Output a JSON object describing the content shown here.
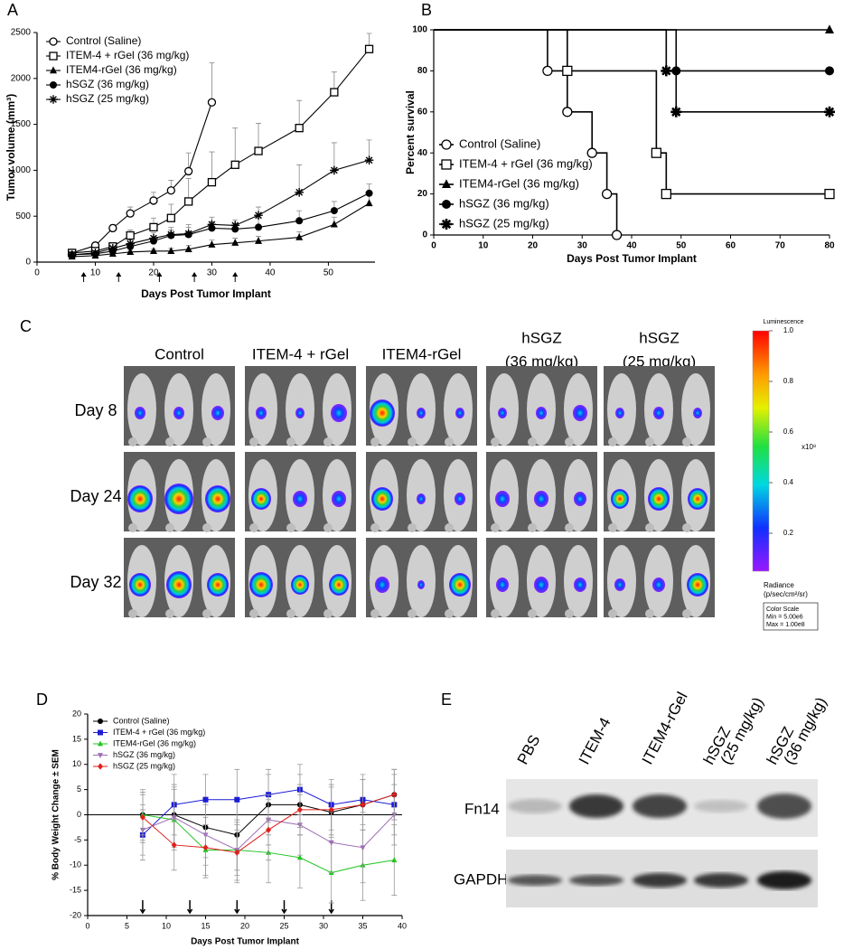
{
  "chart_data": [
    {
      "type": "line",
      "panel": "A",
      "x_label": "Days Post Tumor Implant",
      "y_label": "Tumor volume (mm³)",
      "xlim": [
        0,
        58
      ],
      "xticks": [
        0,
        10,
        20,
        30,
        40,
        50
      ],
      "ylim": [
        0,
        2500
      ],
      "yticks": [
        0,
        500,
        1000,
        1500,
        2000,
        2500
      ],
      "legend": "upper left",
      "error_direction": "up",
      "dose_days": [
        8,
        14,
        21,
        27,
        34
      ],
      "series": [
        {
          "name": "Control (Saline)",
          "color": "#000000",
          "marker": "open-circle",
          "x": [
            6,
            10,
            13,
            16,
            20,
            23,
            26,
            30
          ],
          "values": [
            100,
            180,
            370,
            530,
            670,
            780,
            990,
            1740
          ],
          "errors": [
            20,
            30,
            40,
            70,
            90,
            110,
            200,
            430
          ]
        },
        {
          "name": "ITEM-4 + rGel (36 mg/kg)",
          "color": "#000000",
          "marker": "open-square",
          "x": [
            6,
            10,
            13,
            16,
            20,
            23,
            26,
            30,
            34,
            38,
            45,
            51,
            57
          ],
          "values": [
            100,
            120,
            170,
            290,
            380,
            480,
            660,
            870,
            1060,
            1210,
            1460,
            1850,
            2320
          ],
          "errors": [
            10,
            20,
            30,
            60,
            100,
            150,
            250,
            330,
            400,
            300,
            300,
            220,
            170
          ]
        },
        {
          "name": "ITEM4-rGel (36 mg/kg)",
          "color": "#000000",
          "marker": "triangle",
          "x": [
            6,
            10,
            13,
            16,
            20,
            23,
            26,
            30,
            34,
            38,
            45,
            51,
            57
          ],
          "values": [
            60,
            70,
            90,
            110,
            120,
            120,
            140,
            190,
            210,
            230,
            270,
            410,
            640
          ],
          "errors": [
            10,
            10,
            10,
            20,
            20,
            30,
            40,
            50,
            50,
            50,
            60,
            80,
            100
          ]
        },
        {
          "name": "hSGZ (36 mg/kg)",
          "color": "#000000",
          "marker": "circle",
          "x": [
            6,
            10,
            13,
            16,
            20,
            23,
            26,
            30,
            34,
            38,
            45,
            51,
            57
          ],
          "values": [
            80,
            90,
            120,
            170,
            230,
            290,
            300,
            370,
            360,
            380,
            450,
            560,
            750
          ],
          "errors": [
            10,
            10,
            20,
            40,
            50,
            60,
            80,
            70,
            60,
            100,
            110,
            100,
            100
          ]
        },
        {
          "name": "hSGZ (25 mg/kg)",
          "color": "#000000",
          "marker": "star",
          "x": [
            6,
            10,
            13,
            16,
            20,
            23,
            26,
            30,
            34,
            38,
            45,
            51,
            57
          ],
          "values": [
            80,
            100,
            150,
            200,
            260,
            300,
            310,
            410,
            400,
            510,
            760,
            1000,
            1110
          ],
          "errors": [
            10,
            10,
            20,
            40,
            60,
            80,
            100,
            80,
            60,
            90,
            300,
            300,
            220
          ]
        }
      ]
    },
    {
      "type": "survival",
      "panel": "B",
      "x_label": "Days Post Tumor Implant",
      "y_label": "Percent survival",
      "xlim": [
        0,
        80
      ],
      "xticks": [
        0,
        10,
        20,
        30,
        40,
        50,
        60,
        70,
        80
      ],
      "ylim": [
        0,
        100
      ],
      "yticks": [
        0,
        20,
        40,
        60,
        80,
        100
      ],
      "legend": "lower left",
      "series": [
        {
          "name": "Control (Saline)",
          "color": "#000000",
          "marker": "open-circle",
          "x": [
            0,
            23,
            27,
            32,
            35,
            37
          ],
          "values": [
            100,
            80,
            60,
            40,
            20,
            0
          ]
        },
        {
          "name": "ITEM-4 + rGel (36 mg/kg)",
          "color": "#000000",
          "marker": "open-square",
          "x": [
            0,
            27,
            45,
            47,
            80
          ],
          "values": [
            100,
            80,
            40,
            20,
            20
          ]
        },
        {
          "name": "ITEM4-rGel (36 mg/kg)",
          "color": "#000000",
          "marker": "triangle",
          "x": [
            0,
            80
          ],
          "values": [
            100,
            100
          ]
        },
        {
          "name": "hSGZ (36 mg/kg)",
          "color": "#000000",
          "marker": "circle",
          "x": [
            0,
            49,
            80
          ],
          "values": [
            100,
            80,
            80
          ]
        },
        {
          "name": "hSGZ (25 mg/kg)",
          "color": "#000000",
          "marker": "star",
          "x": [
            0,
            47,
            49,
            80
          ],
          "values": [
            100,
            80,
            60,
            60
          ]
        }
      ]
    },
    {
      "type": "line",
      "panel": "D",
      "x_label": "Days Post Tumor Implant",
      "y_label": "% Body Weight Change ± SEM",
      "xlim": [
        0,
        40
      ],
      "xticks": [
        0,
        5,
        10,
        15,
        20,
        25,
        30,
        35,
        40
      ],
      "ylim": [
        -20,
        20
      ],
      "yticks": [
        -20,
        -15,
        -10,
        -5,
        0,
        5,
        10,
        15,
        20
      ],
      "legend": "upper left",
      "error_direction": "both",
      "zero_line": true,
      "dose_days": [
        7,
        13,
        19,
        25,
        31
      ],
      "x": [
        7,
        11,
        15,
        19,
        23,
        27,
        31,
        35,
        39
      ],
      "series": [
        {
          "name": "Control (Saline)",
          "color": "#000000",
          "marker": "circle",
          "values": [
            0,
            0,
            -2.5,
            -4,
            2,
            2,
            0.5,
            2,
            4
          ],
          "errors": [
            5,
            6,
            6,
            7,
            6,
            6,
            5,
            5,
            5
          ]
        },
        {
          "name": "ITEM-4 + rGel (36 mg/kg)",
          "color": "#1c1cd6",
          "marker": "square",
          "values": [
            -4,
            2,
            3,
            3,
            4,
            5,
            2,
            3,
            2
          ],
          "errors": [
            5,
            6,
            5,
            6,
            5,
            5,
            5,
            5,
            6
          ]
        },
        {
          "name": "ITEM4-rGel (36 mg/kg)",
          "color": "#22c422",
          "marker": "triangle",
          "values": [
            0,
            -1,
            -7,
            -7,
            -7.5,
            -8.5,
            -11.5,
            -10,
            -9
          ],
          "errors": [
            4,
            6,
            5,
            5,
            6,
            6,
            6,
            7,
            7
          ]
        },
        {
          "name": "hSGZ (36 mg/kg)",
          "color": "#9d6fb4",
          "marker": "down-triangle",
          "values": [
            -3,
            -0.5,
            -4,
            -7,
            -1,
            -2,
            -5.5,
            -6.5,
            0
          ],
          "errors": [
            5,
            6,
            6,
            6,
            5,
            6,
            6,
            7,
            6
          ]
        },
        {
          "name": "hSGZ (25 mg/kg)",
          "color": "#e0201c",
          "marker": "diamond",
          "values": [
            -0.5,
            -6,
            -6.5,
            -7.5,
            -3,
            1,
            1,
            2,
            4
          ],
          "errors": [
            5,
            5,
            6,
            6,
            6,
            5,
            5,
            5,
            5
          ]
        }
      ]
    }
  ],
  "imaging": {
    "panel": "C",
    "columns": [
      [
        "Control"
      ],
      [
        "ITEM-4 +  rGel"
      ],
      [
        "ITEM4-rGel"
      ],
      [
        "hSGZ",
        "(36 mg/kg)"
      ],
      [
        "hSGZ",
        "(25 mg/kg)"
      ]
    ],
    "rows": [
      "Day 8",
      "Day 24",
      "Day 32"
    ],
    "colorbar": {
      "title": "Luminescence",
      "lim": [
        0.05,
        1.0
      ],
      "ticks": [
        {
          "value": 1.0,
          "label": "1.0"
        },
        {
          "value": 0.8,
          "label": "0.8"
        },
        {
          "value": 0.6,
          "label": "0.6"
        },
        {
          "value": 0.4,
          "label": "0.4"
        },
        {
          "value": 0.2,
          "label": "0.2"
        }
      ],
      "multiplier": "x10⁸",
      "unit_title": "Radiance",
      "unit": "(p/sec/cm²/sr)",
      "scale_box": [
        "Color Scale",
        "Min = 5.00e6",
        "Max = 1.00e8"
      ]
    }
  },
  "blot": {
    "panel": "E",
    "lanes": [
      [
        "PBS"
      ],
      [
        "ITEM-4"
      ],
      [
        "ITEM4-rGel"
      ],
      [
        "hSGZ",
        "(25 mg/kg)"
      ],
      [
        "hSGZ",
        "(36 mg/kg)"
      ]
    ],
    "rows": [
      "Fn14",
      "GAPDH"
    ]
  }
}
